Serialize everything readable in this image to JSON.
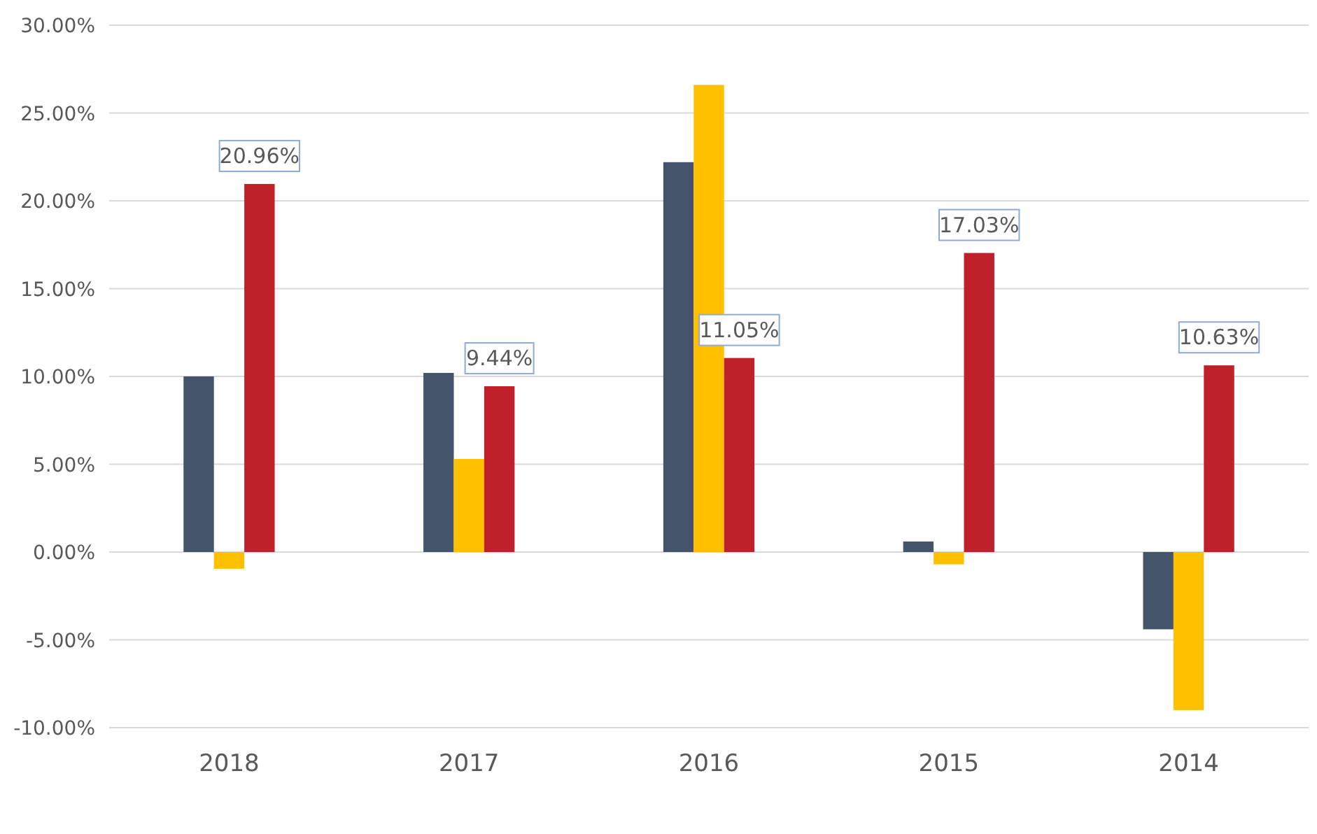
{
  "chart_data": {
    "type": "bar",
    "categories": [
      "2018",
      "2017",
      "2016",
      "2015",
      "2014"
    ],
    "series": [
      {
        "color": "#44546a",
        "values": [
          10.0,
          10.2,
          22.2,
          0.6,
          -4.4
        ]
      },
      {
        "color": "#ffc000",
        "values": [
          -0.95,
          5.3,
          26.6,
          -0.7,
          -9.0
        ]
      },
      {
        "color": "#c0202a",
        "values": [
          20.96,
          9.44,
          11.05,
          17.03,
          10.63
        ],
        "value_labels": [
          "20.96%",
          "9.44%",
          "11.05%",
          "17.03%",
          "10.63%"
        ]
      }
    ],
    "ylim": [
      -10,
      30
    ],
    "yticks": [
      {
        "value": -10,
        "label": "-10.00%"
      },
      {
        "value": -5,
        "label": "-5.00%"
      },
      {
        "value": 0,
        "label": "0.00%"
      },
      {
        "value": 5,
        "label": "5.00%"
      },
      {
        "value": 10,
        "label": "10.00%"
      },
      {
        "value": 15,
        "label": "15.00%"
      },
      {
        "value": 20,
        "label": "20.00%"
      },
      {
        "value": 25,
        "label": "25.00%"
      },
      {
        "value": 30,
        "label": "30.00%"
      }
    ],
    "grid": "y"
  }
}
